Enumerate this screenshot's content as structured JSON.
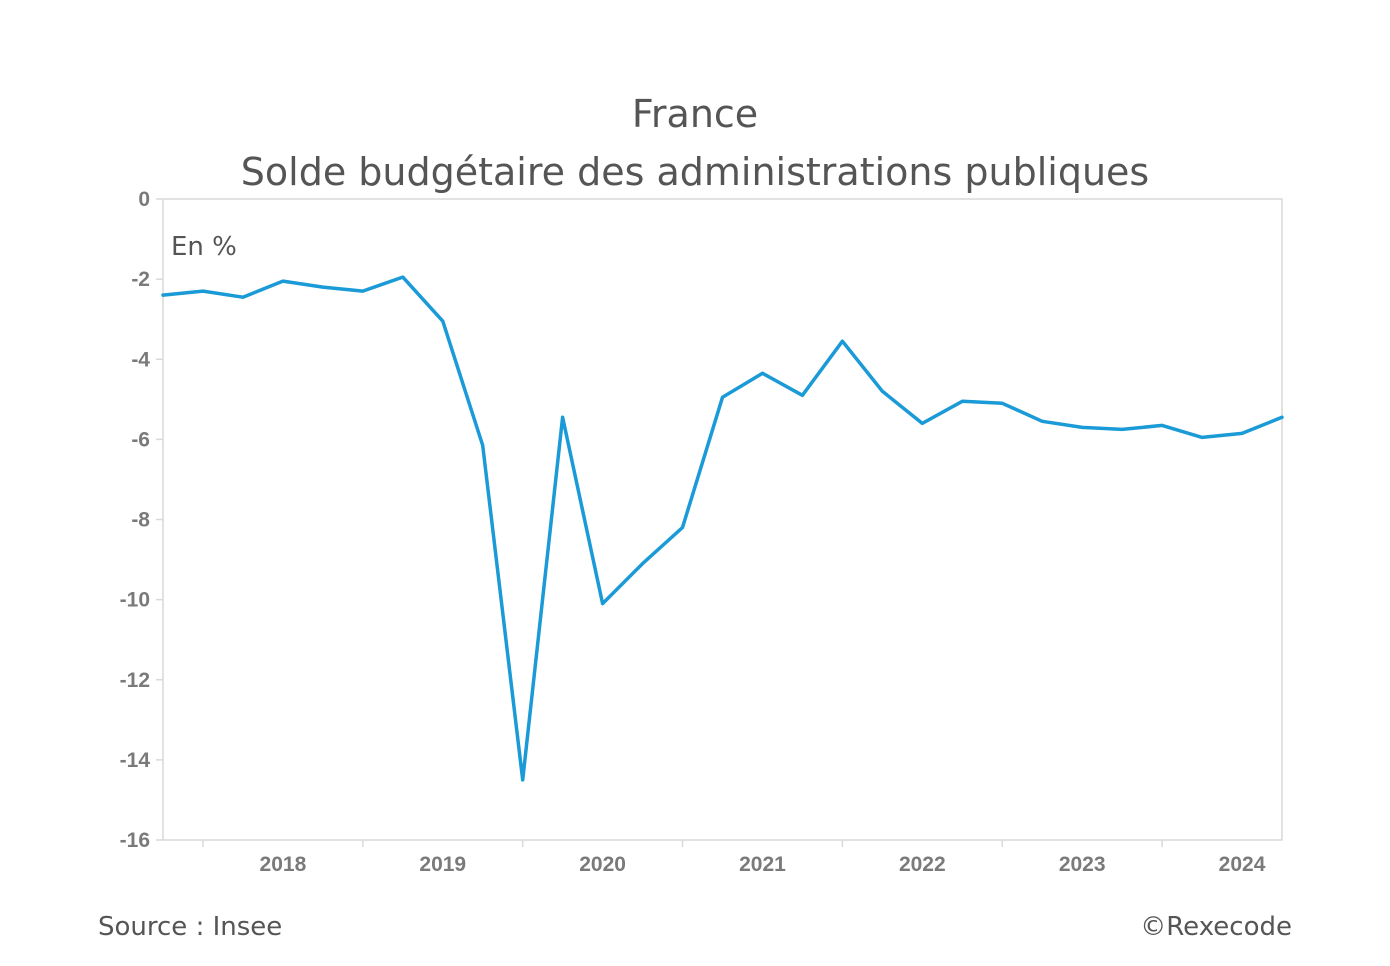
{
  "chart_data": {
    "type": "line",
    "title": "France",
    "subtitle": "Solde budgétaire des administrations publiques",
    "unit_label": "En %",
    "ylabel": "",
    "xlabel": "",
    "ylim": [
      -16,
      0
    ],
    "yticks": [
      0,
      -2,
      -4,
      -6,
      -8,
      -10,
      -12,
      -14,
      -16
    ],
    "ytick_labels": [
      "0",
      "-2",
      "-4",
      "-6",
      "-8",
      "-10",
      "-12",
      "-14",
      "-16"
    ],
    "x_year_labels": [
      "2018",
      "2019",
      "2020",
      "2021",
      "2022",
      "2023",
      "2024"
    ],
    "x_start_year": 2017.75,
    "x_end_year": 2024.75,
    "grid": false,
    "legend": "none",
    "color": "#1a9ad6",
    "series": [
      {
        "x": [
          "2017-T4",
          "2018-T1",
          "2018-T2",
          "2018-T3",
          "2018-T4",
          "2019-T1",
          "2019-T2",
          "2019-T3",
          "2019-T4",
          "2020-T1",
          "2020-T2",
          "2020-T3",
          "2020-T4",
          "2021-T1",
          "2021-T2",
          "2021-T3",
          "2021-T4",
          "2022-T1",
          "2022-T2",
          "2022-T3",
          "2022-T4",
          "2023-T1",
          "2023-T2",
          "2023-T3",
          "2023-T4",
          "2024-T1",
          "2024-T2",
          "2024-T3",
          "2024-T4"
        ],
        "values": [
          -2.4,
          -2.3,
          -2.45,
          -2.05,
          -2.2,
          -2.3,
          -1.95,
          -3.05,
          -6.15,
          -14.5,
          -5.45,
          -10.1,
          -9.1,
          -8.2,
          -4.95,
          -4.35,
          -4.9,
          -3.55,
          -4.8,
          -5.6,
          -5.05,
          -5.1,
          -5.55,
          -5.7,
          -5.75,
          -5.65,
          -5.95,
          -5.85,
          -5.45
        ]
      }
    ]
  },
  "footer": {
    "source": "Source : Insee",
    "copyright": "©Rexecode"
  }
}
